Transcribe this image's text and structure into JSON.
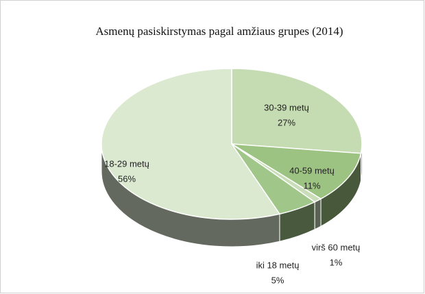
{
  "chart_data": {
    "type": "pie3d",
    "title": "Asmenų pasiskirstymas pagal amžiaus grupes (2014)",
    "categories": [
      "30-39 metų",
      "40-59 metų",
      "virš 60 metų",
      "iki 18 metų",
      "18-29 metų"
    ],
    "values": [
      27,
      11,
      1,
      5,
      56
    ],
    "value_labels": [
      "27%",
      "11%",
      "1%",
      "5%",
      "56%"
    ],
    "colors": [
      "#c5dcb2",
      "#9dc383",
      "#c9ddb8",
      "#a1c68a",
      "#dbe9d1"
    ]
  }
}
